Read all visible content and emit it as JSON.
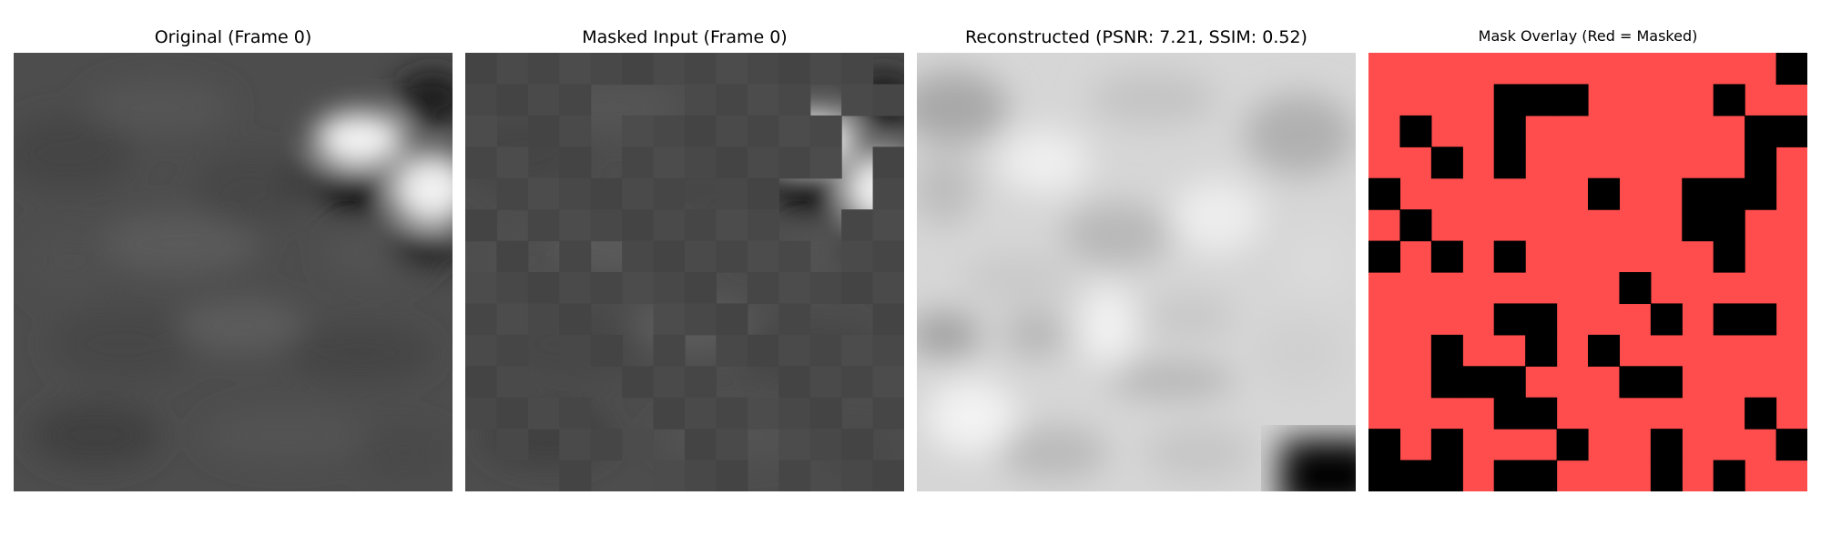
{
  "figure": {
    "panels": [
      {
        "id": "original",
        "title": "Original (Frame 0)"
      },
      {
        "id": "masked",
        "title": "Masked Input (Frame 0)"
      },
      {
        "id": "reconstructed",
        "title": "Reconstructed (PSNR: 7.21, SSIM: 0.52)"
      },
      {
        "id": "mask",
        "title": "Mask Overlay (Red = Masked)"
      }
    ],
    "metrics": {
      "psnr": 7.21,
      "ssim": 0.52
    },
    "grid": {
      "rows": 14,
      "cols": 14
    },
    "colors": {
      "mask_red": "#ff4d4d",
      "dark_patch": "#000000",
      "masked_gray": "#4a4a4a"
    },
    "visible_patches": [
      [
        0,
        13
      ],
      [
        1,
        4
      ],
      [
        1,
        5
      ],
      [
        1,
        6
      ],
      [
        1,
        11
      ],
      [
        2,
        1
      ],
      [
        2,
        4
      ],
      [
        2,
        12
      ],
      [
        2,
        13
      ],
      [
        3,
        2
      ],
      [
        3,
        4
      ],
      [
        3,
        12
      ],
      [
        4,
        0
      ],
      [
        4,
        7
      ],
      [
        4,
        10
      ],
      [
        4,
        11
      ],
      [
        4,
        12
      ],
      [
        5,
        1
      ],
      [
        5,
        10
      ],
      [
        5,
        11
      ],
      [
        6,
        0
      ],
      [
        6,
        2
      ],
      [
        6,
        4
      ],
      [
        6,
        11
      ],
      [
        7,
        8
      ],
      [
        8,
        4
      ],
      [
        8,
        5
      ],
      [
        8,
        9
      ],
      [
        8,
        11
      ],
      [
        8,
        12
      ],
      [
        9,
        2
      ],
      [
        9,
        5
      ],
      [
        9,
        7
      ],
      [
        10,
        2
      ],
      [
        10,
        3
      ],
      [
        10,
        4
      ],
      [
        10,
        8
      ],
      [
        10,
        9
      ],
      [
        11,
        4
      ],
      [
        11,
        5
      ],
      [
        11,
        12
      ],
      [
        12,
        0
      ],
      [
        12,
        2
      ],
      [
        12,
        6
      ],
      [
        12,
        9
      ],
      [
        12,
        13
      ],
      [
        13,
        0
      ],
      [
        13,
        1
      ],
      [
        13,
        2
      ],
      [
        13,
        4
      ],
      [
        13,
        5
      ],
      [
        13,
        9
      ],
      [
        13,
        11
      ]
    ]
  }
}
